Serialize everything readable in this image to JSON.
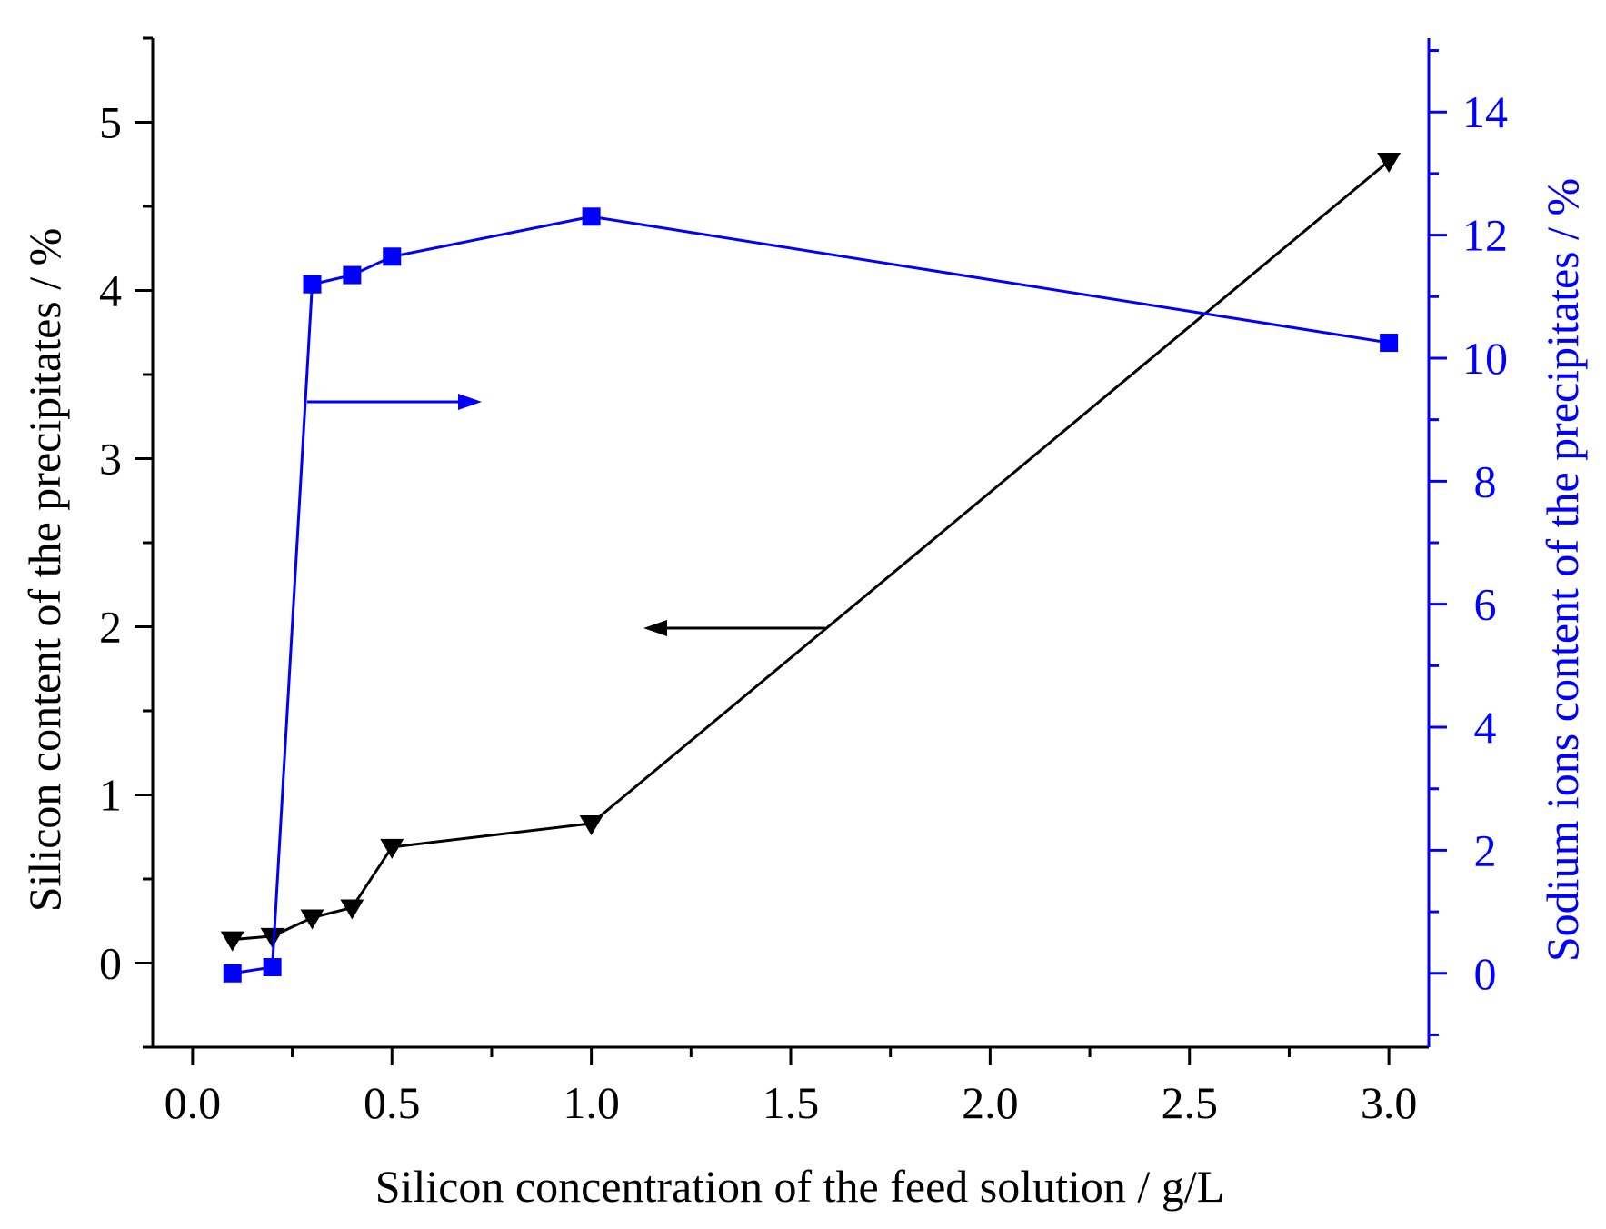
{
  "chart_data": {
    "type": "line",
    "title": "",
    "xlabel": "Silicon concentration of the feed solution / g/L",
    "ylabel": "Silicon content of the precipitates / %",
    "y2label": "Sodium ions  content of the precipitates / %",
    "xlim": [
      -0.1,
      3.1
    ],
    "ylim": [
      -0.5,
      5.5
    ],
    "y2lim": [
      -1.2,
      15.2
    ],
    "xticks": [
      "0.0",
      "0.5",
      "1.0",
      "1.5",
      "2.0",
      "2.5",
      "3.0"
    ],
    "xtick_values": [
      0.0,
      0.5,
      1.0,
      1.5,
      2.0,
      2.5,
      3.0
    ],
    "yticks": [
      "0",
      "1",
      "2",
      "3",
      "4",
      "5"
    ],
    "ytick_values": [
      0,
      1,
      2,
      3,
      4,
      5
    ],
    "y2ticks": [
      "0",
      "2",
      "4",
      "6",
      "8",
      "10",
      "12",
      "14"
    ],
    "y2tick_values": [
      0,
      2,
      4,
      6,
      8,
      10,
      12,
      14
    ],
    "grid": false,
    "series": [
      {
        "name": "Silicon content",
        "axis": "left",
        "color": "#000000",
        "marker": "triangle-down",
        "x": [
          0.1,
          0.2,
          0.3,
          0.4,
          0.5,
          1.0,
          3.0
        ],
        "y": [
          0.14,
          0.16,
          0.27,
          0.33,
          0.69,
          0.83,
          4.77
        ]
      },
      {
        "name": "Sodium ions content",
        "axis": "right",
        "color": "#0000ff",
        "marker": "square",
        "x": [
          0.1,
          0.2,
          0.3,
          0.4,
          0.5,
          1.0,
          3.0
        ],
        "y": [
          0.0,
          0.1,
          11.2,
          11.35,
          11.65,
          12.3,
          10.25
        ]
      }
    ],
    "annotations": [
      {
        "type": "arrow",
        "series": "Sodium ions content",
        "direction": "right",
        "meaning": "points to right axis"
      },
      {
        "type": "arrow",
        "series": "Silicon content",
        "direction": "left",
        "meaning": "points to left axis"
      }
    ]
  }
}
